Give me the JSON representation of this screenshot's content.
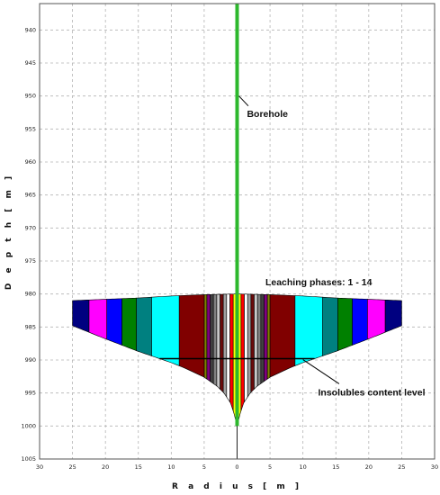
{
  "chart_data": {
    "type": "area",
    "title": "",
    "xlabel": "R a d i u s   [ m ]",
    "ylabel": "D e p t h   [ m ]",
    "xlim": [
      -30,
      30
    ],
    "ylim": [
      1005,
      936
    ],
    "x_ticks": [
      30,
      25,
      20,
      15,
      10,
      5,
      0,
      5,
      10,
      15,
      20,
      25,
      30
    ],
    "x_tick_values": [
      -30,
      -25,
      -20,
      -15,
      -10,
      -5,
      0,
      5,
      10,
      15,
      20,
      25,
      30
    ],
    "y_ticks": [
      940,
      945,
      950,
      955,
      960,
      965,
      970,
      975,
      980,
      985,
      990,
      995,
      1000,
      1005
    ],
    "grid": true,
    "borehole": {
      "x": 0,
      "top_depth": 936,
      "bottom_depth": 1000,
      "color": "#2db82d",
      "label": "Borehole"
    },
    "cavern": {
      "roof": [
        {
          "r": 0,
          "depth": 980.0
        },
        {
          "r": 5,
          "depth": 980.1
        },
        {
          "r": 10,
          "depth": 980.3
        },
        {
          "r": 15,
          "depth": 980.6
        },
        {
          "r": 20,
          "depth": 980.8
        },
        {
          "r": 25,
          "depth": 981.0
        }
      ],
      "floor": [
        {
          "r": 0,
          "depth": 1000.0
        },
        {
          "r": 0.5,
          "depth": 998.0
        },
        {
          "r": 1,
          "depth": 996.5
        },
        {
          "r": 2,
          "depth": 995.0
        },
        {
          "r": 3,
          "depth": 994.0
        },
        {
          "r": 5,
          "depth": 992.6
        },
        {
          "r": 8,
          "depth": 991.2
        },
        {
          "r": 10,
          "depth": 990.4
        },
        {
          "r": 15,
          "depth": 988.7
        },
        {
          "r": 20,
          "depth": 986.8
        },
        {
          "r": 25,
          "depth": 984.8
        }
      ],
      "phase_label": "Leaching phases: 1 - 14",
      "phase_boundaries": [
        0,
        0.6,
        1.1,
        1.6,
        2.1,
        2.6,
        3.1,
        3.6,
        4.1,
        4.6,
        5.0,
        8.8,
        13.0,
        15.3,
        17.5,
        19.8,
        22.5,
        25.0
      ],
      "phase_colors": [
        "#ffff00",
        "#ff0000",
        "#ffffff",
        "#a0a0a0",
        "#6a0a0a",
        "#c8c8c8",
        "#808080",
        "#404040",
        "#800080",
        "#808000",
        "#800000",
        "#00ffff",
        "#008080",
        "#008000",
        "#0000ff",
        "#ff00ff",
        "#000080",
        "#00ff00"
      ]
    },
    "insolubles_level": {
      "depth": 989.8,
      "label": "Insolubles content level"
    }
  }
}
